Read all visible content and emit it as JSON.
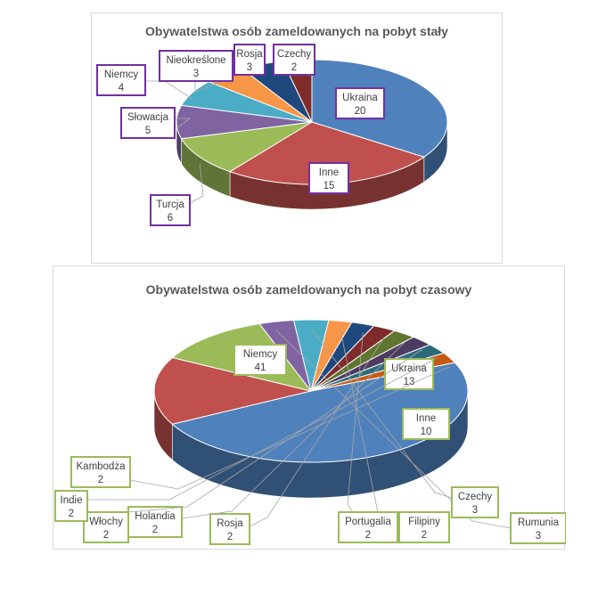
{
  "chart_data": [
    {
      "type": "pie",
      "title": "Obywatelstwa osób zameldowanych na pobyt stały",
      "label_box_color": "#7030a0",
      "slices": [
        {
          "label": "Ukraina",
          "value": 20,
          "color": "#4f81bd"
        },
        {
          "label": "Inne",
          "value": 15,
          "color": "#c0504d"
        },
        {
          "label": "Turcja",
          "value": 6,
          "color": "#9bbb59"
        },
        {
          "label": "Słowacja",
          "value": 5,
          "color": "#8064a2"
        },
        {
          "label": "Niemcy",
          "value": 4,
          "color": "#4bacc6"
        },
        {
          "label": "Nieokreślone",
          "value": 3,
          "color": "#f79646"
        },
        {
          "label": "Rosja",
          "value": 3,
          "color": "#1f497d"
        },
        {
          "label": "Czechy",
          "value": 2,
          "color": "#7f2b2b"
        }
      ]
    },
    {
      "type": "pie",
      "title": "Obywatelstwa osób zameldowanych na pobyt czasowy",
      "label_box_color": "#9bbb59",
      "slices": [
        {
          "label": "Niemcy",
          "value": 41,
          "color": "#4f81bd"
        },
        {
          "label": "Ukraina",
          "value": 13,
          "color": "#c0504d"
        },
        {
          "label": "Inne",
          "value": 10,
          "color": "#9bbb59"
        },
        {
          "label": "Rumunia",
          "value": 3,
          "color": "#8064a2"
        },
        {
          "label": "Czechy",
          "value": 3,
          "color": "#4bacc6"
        },
        {
          "label": "Filipiny",
          "value": 2,
          "color": "#f79646"
        },
        {
          "label": "Portugalia",
          "value": 2,
          "color": "#1f497d"
        },
        {
          "label": "Rosja",
          "value": 2,
          "color": "#7f2b2b"
        },
        {
          "label": "Holandia",
          "value": 2,
          "color": "#5f7530"
        },
        {
          "label": "Włochy",
          "value": 2,
          "color": "#4d3b62"
        },
        {
          "label": "Indie",
          "value": 2,
          "color": "#2c6b7d"
        },
        {
          "label": "Kambodża",
          "value": 2,
          "color": "#c55a11"
        }
      ]
    }
  ]
}
